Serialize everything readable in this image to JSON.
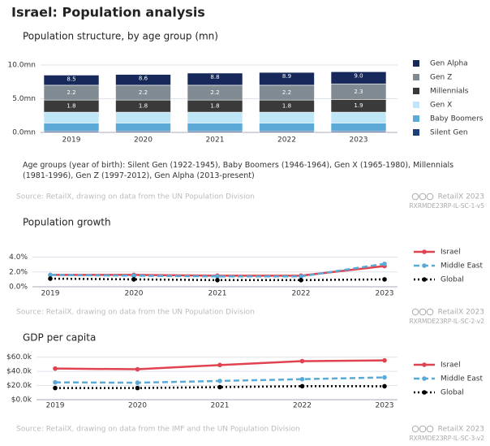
{
  "header": {
    "title": "Israel: Population analysis"
  },
  "chart_data": [
    {
      "type": "stacked-bar",
      "title": "Population structure, by age group (mn)",
      "categories": [
        "2019",
        "2020",
        "2021",
        "2022",
        "2023"
      ],
      "series": [
        {
          "name": "Silent Gen",
          "color": "#1f3f7a",
          "values": [
            0.2,
            0.2,
            0.2,
            0.2,
            0.2
          ]
        },
        {
          "name": "Baby Boomers",
          "color": "#5aa9d6",
          "values": [
            1.2,
            1.2,
            1.2,
            1.2,
            1.2
          ]
        },
        {
          "name": "Gen X",
          "color": "#bfe6f7",
          "values": [
            1.6,
            1.6,
            1.6,
            1.6,
            1.6
          ]
        },
        {
          "name": "Millennials",
          "color": "#3a3a3a",
          "values": [
            1.8,
            1.8,
            1.8,
            1.8,
            1.9
          ],
          "show_labels": true
        },
        {
          "name": "Gen Z",
          "color": "#7f8a92",
          "values": [
            2.2,
            2.2,
            2.2,
            2.2,
            2.3
          ],
          "show_labels": true
        },
        {
          "name": "Gen Alpha",
          "color": "#16295a",
          "values": [
            1.5,
            1.6,
            1.8,
            1.9,
            1.8
          ]
        }
      ],
      "totals": {
        "values": [
          8.5,
          8.6,
          8.8,
          8.9,
          9.0
        ],
        "value_labels": [
          "8.5",
          "8.6",
          "8.8",
          "8.9",
          "9.0"
        ]
      },
      "ylim": [
        0,
        10
      ],
      "yticks": [
        {
          "value": 0,
          "label": "0.0mn"
        },
        {
          "value": 5,
          "label": "5.0mn"
        },
        {
          "value": 10,
          "label": "10.0mn"
        }
      ],
      "grid": true,
      "note": "Age groups (year of birth): Silent Gen (1922-1945), Baby Boomers (1946-1964), Gen X (1965-1980), Millennials (1981-1996), Gen Z (1997-2012), Gen Alpha (2013-present)",
      "source": "Source: RetailX, drawing on data from the UN Population Division",
      "credit": "RetailX 2023",
      "code": "RXRMDE23RP-IL-SC-1-v5"
    },
    {
      "type": "line",
      "title": "Population growth",
      "categories": [
        "2019",
        "2020",
        "2021",
        "2022",
        "2023"
      ],
      "series": [
        {
          "name": "Israel",
          "color": "#e0434f",
          "style": "solid",
          "values": [
            1.6,
            1.6,
            1.5,
            1.5,
            2.8
          ]
        },
        {
          "name": "Middle East",
          "color": "#5aaad8",
          "style": "dashed",
          "values": [
            1.6,
            1.5,
            1.4,
            1.4,
            3.1
          ]
        },
        {
          "name": "Global",
          "color": "#000000",
          "style": "dotted",
          "values": [
            1.1,
            1.0,
            0.9,
            0.9,
            1.0
          ]
        }
      ],
      "ylim": [
        0,
        4.5
      ],
      "yticks": [
        {
          "value": 0,
          "label": "0.0%"
        },
        {
          "value": 2,
          "label": "2.0%"
        },
        {
          "value": 4,
          "label": "4.0%"
        }
      ],
      "grid": true,
      "source": "Source: RetailX, drawing on data from the UN Population Division",
      "credit": "RetailX 2023",
      "code": "RXRMDE23RP-IL-SC-2-v2"
    },
    {
      "type": "line",
      "title": "GDP per capita",
      "categories": [
        "2019",
        "2020",
        "2021",
        "2022",
        "2023"
      ],
      "series": [
        {
          "name": "Israel",
          "color": "#e0434f",
          "style": "solid",
          "values": [
            44000,
            43000,
            49000,
            54500,
            55500
          ]
        },
        {
          "name": "Middle East",
          "color": "#5aaad8",
          "style": "dashed",
          "values": [
            24500,
            24000,
            26500,
            29000,
            31500
          ]
        },
        {
          "name": "Global",
          "color": "#000000",
          "style": "dotted",
          "values": [
            16500,
            16500,
            17800,
            19100,
            19000
          ]
        }
      ],
      "ylim": [
        0,
        62000
      ],
      "yticks": [
        {
          "value": 0,
          "label": "$0.0k"
        },
        {
          "value": 20000,
          "label": "$20.0k"
        },
        {
          "value": 40000,
          "label": "$40.0k"
        },
        {
          "value": 60000,
          "label": "$60.0k"
        }
      ],
      "grid": true,
      "source": "Source: RetailX, drawing on data from the IMF and the UN Population Division",
      "credit": "RetailX 2023",
      "code": "RXRMDE23RP-IL-SC-3-v2"
    }
  ]
}
